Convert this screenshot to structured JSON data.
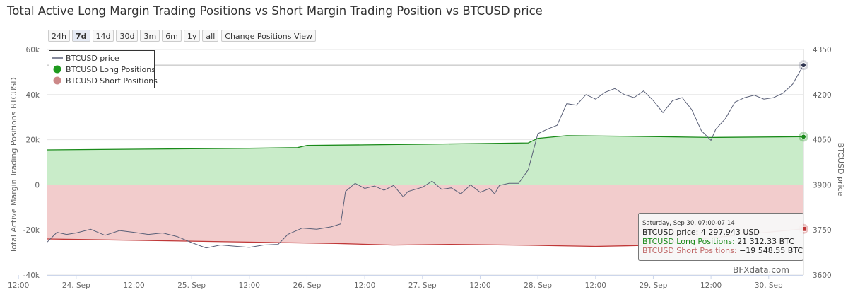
{
  "chart_data": {
    "type": "area",
    "title": "Total Active Long Margin Trading Positions vs Short Margin Trading Position vs BTCUSD price",
    "range_buttons": [
      "24h",
      "7d",
      "14d",
      "30d",
      "3m",
      "6m",
      "1y",
      "all"
    ],
    "selected_range": "7d",
    "view_button": "Change Positions View",
    "y_left": {
      "label": "Total Active Margin Trading Positions BTCUSD",
      "ticks": [
        -40000,
        -20000,
        0,
        20000,
        40000,
        60000
      ],
      "tick_labels": [
        "-40k",
        "-20k",
        "0",
        "20k",
        "40k",
        "60k"
      ],
      "range": [
        -40000,
        60000
      ]
    },
    "y_right": {
      "label": "BTCUSD price",
      "ticks": [
        3600,
        3750,
        3900,
        4050,
        4200,
        4350
      ],
      "tick_labels": [
        "3600",
        "3750",
        "3900",
        "4050",
        "4200",
        "4350"
      ],
      "range": [
        3600,
        4350
      ]
    },
    "x_axis": {
      "start": "Sep 23, 18:00",
      "end": "Sep 30, 07:14",
      "tick_labels": [
        "12:00",
        "24. Sep",
        "12:00",
        "25. Sep",
        "12:00",
        "26. Sep",
        "12:00",
        "27. Sep",
        "12:00",
        "28. Sep",
        "12:00",
        "29. Sep",
        "12:00",
        "30. Sep"
      ]
    },
    "legend": {
      "placement": "top-left",
      "entries": [
        "BTCUSD price",
        "BTCUSD Long Positions",
        "BTCUSD Short Positions"
      ]
    },
    "series": [
      {
        "name": "BTCUSD price",
        "axis": "right",
        "color": "#5a6078",
        "points": [
          [
            "Sep 23, 18:00",
            3710
          ],
          [
            "Sep 23, 20:00",
            3742
          ],
          [
            "Sep 23, 22:00",
            3735
          ],
          [
            "Sep 24, 00:00",
            3740
          ],
          [
            "Sep 24, 03:00",
            3752
          ],
          [
            "Sep 24, 06:00",
            3732
          ],
          [
            "Sep 24, 09:00",
            3748
          ],
          [
            "Sep 24, 12:00",
            3742
          ],
          [
            "Sep 24, 15:00",
            3735
          ],
          [
            "Sep 24, 18:00",
            3740
          ],
          [
            "Sep 24, 21:00",
            3728
          ],
          [
            "Sep 25, 00:00",
            3708
          ],
          [
            "Sep 25, 03:00",
            3690
          ],
          [
            "Sep 25, 06:00",
            3700
          ],
          [
            "Sep 25, 09:00",
            3696
          ],
          [
            "Sep 25, 12:00",
            3692
          ],
          [
            "Sep 25, 15:00",
            3700
          ],
          [
            "Sep 25, 18:00",
            3702
          ],
          [
            "Sep 25, 20:00",
            3735
          ],
          [
            "Sep 25, 23:00",
            3756
          ],
          [
            "Sep 26, 02:00",
            3752
          ],
          [
            "Sep 26, 05:00",
            3760
          ],
          [
            "Sep 26, 07:00",
            3770
          ],
          [
            "Sep 26, 08:00",
            3878
          ],
          [
            "Sep 26, 10:00",
            3905
          ],
          [
            "Sep 26, 12:00",
            3888
          ],
          [
            "Sep 26, 14:00",
            3896
          ],
          [
            "Sep 26, 16:00",
            3882
          ],
          [
            "Sep 26, 18:00",
            3898
          ],
          [
            "Sep 26, 20:00",
            3860
          ],
          [
            "Sep 26, 21:00",
            3878
          ],
          [
            "Sep 27, 00:00",
            3892
          ],
          [
            "Sep 27, 02:00",
            3912
          ],
          [
            "Sep 27, 04:00",
            3885
          ],
          [
            "Sep 27, 06:00",
            3890
          ],
          [
            "Sep 27, 08:00",
            3870
          ],
          [
            "Sep 27, 10:00",
            3900
          ],
          [
            "Sep 27, 12:00",
            3875
          ],
          [
            "Sep 27, 14:00",
            3888
          ],
          [
            "Sep 27, 15:00",
            3870
          ],
          [
            "Sep 27, 16:00",
            3898
          ],
          [
            "Sep 27, 18:00",
            3905
          ],
          [
            "Sep 27, 20:00",
            3905
          ],
          [
            "Sep 27, 22:00",
            3950
          ],
          [
            "Sep 28, 00:00",
            4070
          ],
          [
            "Sep 28, 02:00",
            4085
          ],
          [
            "Sep 28, 04:00",
            4098
          ],
          [
            "Sep 28, 06:00",
            4170
          ],
          [
            "Sep 28, 08:00",
            4165
          ],
          [
            "Sep 28, 10:00",
            4200
          ],
          [
            "Sep 28, 12:00",
            4185
          ],
          [
            "Sep 28, 14:00",
            4208
          ],
          [
            "Sep 28, 16:00",
            4220
          ],
          [
            "Sep 28, 18:00",
            4200
          ],
          [
            "Sep 28, 20:00",
            4190
          ],
          [
            "Sep 28, 22:00",
            4212
          ],
          [
            "Sep 29, 00:00",
            4180
          ],
          [
            "Sep 29, 02:00",
            4140
          ],
          [
            "Sep 29, 04:00",
            4180
          ],
          [
            "Sep 29, 06:00",
            4190
          ],
          [
            "Sep 29, 08:00",
            4150
          ],
          [
            "Sep 29, 10:00",
            4080
          ],
          [
            "Sep 29, 12:00",
            4048
          ],
          [
            "Sep 29, 13:00",
            4085
          ],
          [
            "Sep 29, 15:00",
            4120
          ],
          [
            "Sep 29, 17:00",
            4175
          ],
          [
            "Sep 29, 19:00",
            4190
          ],
          [
            "Sep 29, 21:00",
            4198
          ],
          [
            "Sep 29, 23:00",
            4185
          ],
          [
            "Sep 30, 01:00",
            4190
          ],
          [
            "Sep 30, 03:00",
            4205
          ],
          [
            "Sep 30, 05:00",
            4235
          ],
          [
            "Sep 30, 07:14",
            4297.943
          ]
        ]
      },
      {
        "name": "BTCUSD Long Positions",
        "axis": "left",
        "color": "#1a8a1a",
        "fill": "#c9ecc9",
        "points": [
          [
            "Sep 23, 18:00",
            15500
          ],
          [
            "Sep 24, 12:00",
            15800
          ],
          [
            "Sep 25, 12:00",
            16200
          ],
          [
            "Sep 25, 22:00",
            16500
          ],
          [
            "Sep 26, 00:00",
            17500
          ],
          [
            "Sep 26, 12:00",
            17700
          ],
          [
            "Sep 27, 00:00",
            18000
          ],
          [
            "Sep 27, 12:00",
            18300
          ],
          [
            "Sep 27, 22:00",
            18600
          ],
          [
            "Sep 28, 00:00",
            20600
          ],
          [
            "Sep 28, 06:00",
            21800
          ],
          [
            "Sep 28, 20:00",
            21500
          ],
          [
            "Sep 29, 12:00",
            21000
          ],
          [
            "Sep 30, 07:14",
            21312.33
          ]
        ]
      },
      {
        "name": "BTCUSD Short Positions",
        "axis": "left",
        "color": "#c03838",
        "fill": "#f2cccc",
        "points": [
          [
            "Sep 23, 18:00",
            -24000
          ],
          [
            "Sep 24, 12:00",
            -24600
          ],
          [
            "Sep 25, 00:00",
            -25000
          ],
          [
            "Sep 25, 18:00",
            -25600
          ],
          [
            "Sep 26, 06:00",
            -26000
          ],
          [
            "Sep 26, 18:00",
            -26700
          ],
          [
            "Sep 27, 06:00",
            -26400
          ],
          [
            "Sep 27, 22:00",
            -26800
          ],
          [
            "Sep 28, 12:00",
            -27300
          ],
          [
            "Sep 29, 00:00",
            -26800
          ],
          [
            "Sep 29, 12:00",
            -23500
          ],
          [
            "Sep 30, 00:00",
            -21000
          ],
          [
            "Sep 30, 07:14",
            -19548.55
          ]
        ]
      }
    ],
    "tooltip": {
      "header": "Saturday, Sep 30, 07:00-07:14",
      "lines": [
        {
          "label": "BTCUSD price:",
          "value": "4 297.943 USD"
        },
        {
          "label": "BTCUSD Long Positions:",
          "value": "21 312.33 BTC"
        },
        {
          "label": "BTCUSD Short Positions:",
          "value": "−19 548.55 BTC"
        }
      ]
    },
    "credit": "BFXdata.com"
  }
}
